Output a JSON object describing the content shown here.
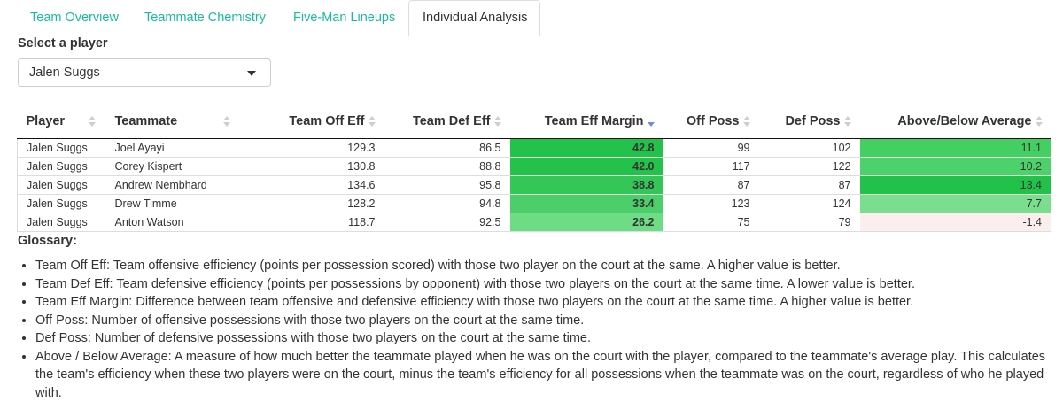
{
  "tabs": [
    {
      "label": "Team Overview",
      "active": false
    },
    {
      "label": "Teammate Chemistry",
      "active": false
    },
    {
      "label": "Five-Man Lineups",
      "active": false
    },
    {
      "label": "Individual Analysis",
      "active": true
    }
  ],
  "player_select": {
    "label": "Select a player",
    "value": "Jalen Suggs"
  },
  "table": {
    "columns": [
      "Player",
      "Teammate",
      "Team Off Eff",
      "Team Def Eff",
      "Team Eff Margin",
      "Off Poss",
      "Def Poss",
      "Above/Below Average"
    ],
    "sorted_column": "Team Eff Margin",
    "sort_direction": "descending",
    "rows": [
      {
        "player": "Jalen Suggs",
        "teammate": "Joel Ayayi",
        "off_eff": "129.3",
        "def_eff": "86.5",
        "margin": "42.8",
        "off_poss": "99",
        "def_poss": "102",
        "above_below": "11.1",
        "margin_color": "#23c24a",
        "above_color": "#44cf63"
      },
      {
        "player": "Jalen Suggs",
        "teammate": "Corey Kispert",
        "off_eff": "130.8",
        "def_eff": "88.8",
        "margin": "42.0",
        "off_poss": "117",
        "def_poss": "122",
        "above_below": "10.2",
        "margin_color": "#25c24b",
        "above_color": "#4dd26b"
      },
      {
        "player": "Jalen Suggs",
        "teammate": "Andrew Nembhard",
        "off_eff": "134.6",
        "def_eff": "95.8",
        "margin": "38.8",
        "off_poss": "87",
        "def_poss": "87",
        "above_below": "13.4",
        "margin_color": "#34c757",
        "above_color": "#22c149"
      },
      {
        "player": "Jalen Suggs",
        "teammate": "Drew Timme",
        "off_eff": "128.2",
        "def_eff": "94.8",
        "margin": "33.4",
        "off_poss": "123",
        "def_poss": "124",
        "above_below": "7.7",
        "margin_color": "#4ccf6a",
        "above_color": "#7bde8f"
      },
      {
        "player": "Jalen Suggs",
        "teammate": "Anton Watson",
        "off_eff": "118.7",
        "def_eff": "92.5",
        "margin": "26.2",
        "off_poss": "75",
        "def_poss": "79",
        "above_below": "-1.4",
        "margin_color": "#6edb85",
        "above_color": "#fdeeee"
      }
    ]
  },
  "glossary": {
    "title": "Glossary:",
    "items": [
      "Team Off Eff: Team offensive efficiency (points per possession scored) with those two player on the court at the same. A higher value is better.",
      "Team Def Eff: Team defensive efficiency (points per possessions by opponent) with those two players on the court at the same time. A lower value is better.",
      "Team Eff Margin: Difference between team offensive and defensive efficiency with those two players on the court at the same time. A higher value is better.",
      "Off Poss: Number of offensive possessions with those two players on the court at the same time.",
      "Def Poss: Number of defensive possessions with those two players on the court at the same time.",
      "Above / Below Average: A measure of how much better the teammate played when he was on the court with the player, compared to the teammate's average play. This calculates the team's efficiency when these two players were on the court, minus the team's efficiency for all possessions when the teammate was on the court, regardless of who he played with."
    ]
  }
}
